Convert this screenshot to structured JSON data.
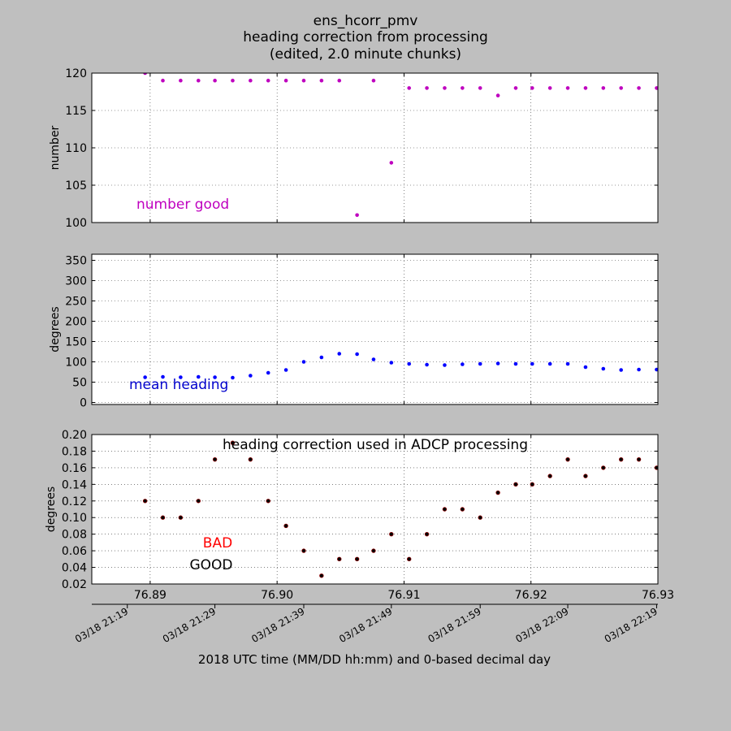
{
  "figure": {
    "title_lines": [
      "ens_hcorr_pmv",
      "heading correction from processing",
      "(edited, 2.0 minute chunks)"
    ],
    "xlabel": "2018 UTC time (MM/DD hh:mm) and 0-based decimal day",
    "background": "#bfbfbf"
  },
  "chart_data": [
    {
      "type": "scatter",
      "panel": "number",
      "ylabel": "number",
      "annotation": "number good",
      "annotation_color": "#bf00bf",
      "marker_color": "#bf00bf",
      "xlim": [
        76.8854,
        76.93
      ],
      "ylim": [
        100,
        120
      ],
      "yticks": [
        100,
        105,
        110,
        115,
        120
      ],
      "ytick_labels": [
        "100",
        "105",
        "110",
        "115",
        "120"
      ],
      "x": [
        76.8896,
        76.891,
        76.8924,
        76.8938,
        76.8951,
        76.8965,
        76.8979,
        76.8993,
        76.9007,
        76.9021,
        76.9035,
        76.9049,
        76.9063,
        76.9076,
        76.909,
        76.9104,
        76.9118,
        76.9132,
        76.9146,
        76.916,
        76.9174,
        76.9188,
        76.9201,
        76.9215,
        76.9229,
        76.9243,
        76.9257,
        76.9271,
        76.9285,
        76.9299
      ],
      "y": [
        120,
        119,
        119,
        119,
        119,
        119,
        119,
        119,
        119,
        119,
        119,
        119,
        101,
        119,
        108,
        118,
        118,
        118,
        118,
        118,
        117,
        118,
        118,
        118,
        118,
        118,
        118,
        118,
        118,
        118
      ],
      "grid": true
    },
    {
      "type": "scatter",
      "panel": "heading",
      "ylabel": "degrees",
      "annotation": "mean heading",
      "annotation_color": "#0000cc",
      "marker_color": "#0000ff",
      "xlim": [
        76.8854,
        76.93
      ],
      "ylim": [
        -5,
        365
      ],
      "yticks": [
        0,
        50,
        100,
        150,
        200,
        250,
        300,
        350
      ],
      "ytick_labels": [
        "0",
        "50",
        "100",
        "150",
        "200",
        "250",
        "300",
        "350"
      ],
      "x": [
        76.8896,
        76.891,
        76.8924,
        76.8938,
        76.8951,
        76.8965,
        76.8979,
        76.8993,
        76.9007,
        76.9021,
        76.9035,
        76.9049,
        76.9063,
        76.9076,
        76.909,
        76.9104,
        76.9118,
        76.9132,
        76.9146,
        76.916,
        76.9174,
        76.9188,
        76.9201,
        76.9215,
        76.9229,
        76.9243,
        76.9257,
        76.9271,
        76.9285,
        76.9299
      ],
      "y": [
        62,
        63,
        62,
        63,
        62,
        61,
        66,
        73,
        80,
        100,
        111,
        120,
        119,
        106,
        98,
        95,
        93,
        92,
        94,
        95,
        96,
        95,
        95,
        95,
        95,
        87,
        83,
        80,
        81,
        81
      ],
      "grid": true
    },
    {
      "type": "scatter",
      "panel": "correction",
      "title": "heading correction used in ADCP processing",
      "ylabel": "degrees",
      "legend": [
        {
          "label": "BAD",
          "color": "#ff0000"
        },
        {
          "label": "GOOD",
          "color": "#000000"
        }
      ],
      "marker_color": "#000000",
      "marker_edge": "#8b0000",
      "xlim": [
        76.8854,
        76.93
      ],
      "ylim": [
        0.02,
        0.2
      ],
      "yticks": [
        0.02,
        0.04,
        0.06,
        0.08,
        0.1,
        0.12,
        0.14,
        0.16,
        0.18,
        0.2
      ],
      "ytick_labels": [
        "0.02",
        "0.04",
        "0.06",
        "0.08",
        "0.10",
        "0.12",
        "0.14",
        "0.16",
        "0.18",
        "0.20"
      ],
      "x": [
        76.8896,
        76.891,
        76.8924,
        76.8938,
        76.8951,
        76.8965,
        76.8979,
        76.8993,
        76.9007,
        76.9021,
        76.9035,
        76.9049,
        76.9063,
        76.9076,
        76.909,
        76.9104,
        76.9118,
        76.9132,
        76.9146,
        76.916,
        76.9174,
        76.9188,
        76.9201,
        76.9215,
        76.9229,
        76.9243,
        76.9257,
        76.9271,
        76.9285,
        76.9299
      ],
      "y": [
        0.12,
        0.1,
        0.1,
        0.12,
        0.17,
        0.19,
        0.17,
        0.12,
        0.09,
        0.06,
        0.03,
        0.05,
        0.05,
        0.06,
        0.08,
        0.05,
        0.08,
        0.11,
        0.11,
        0.1,
        0.13,
        0.14,
        0.14,
        0.15,
        0.17,
        0.15,
        0.16,
        0.17,
        0.17,
        0.16
      ],
      "xticks": [
        76.89,
        76.9,
        76.91,
        76.92,
        76.93
      ],
      "xtick_labels": [
        "76.89",
        "76.90",
        "76.91",
        "76.92",
        "76.93"
      ],
      "time_ticks": [
        76.8882,
        76.8951,
        76.9021,
        76.909,
        76.916,
        76.9229,
        76.9299
      ],
      "time_tick_labels": [
        "03/18 21:19",
        "03/18 21:29",
        "03/18 21:39",
        "03/18 21:49",
        "03/18 21:59",
        "03/18 22:09",
        "03/18 22:19"
      ],
      "grid": true
    }
  ]
}
